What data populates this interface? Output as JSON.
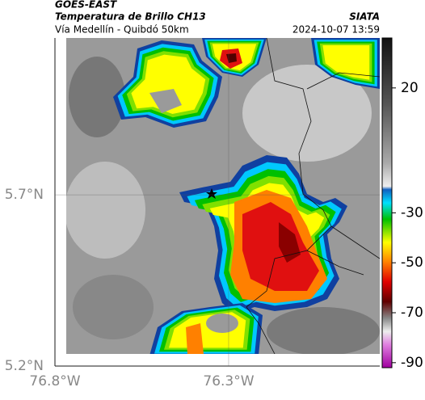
{
  "header": {
    "source": "GOES-EAST",
    "title": "Temperatura de Brillo CH13",
    "org": "SIATA",
    "subtitle": "Vía Medellín - Quibdó 50km",
    "datetime": "2024-10-07 13:59"
  },
  "map": {
    "lon_lim": [
      -76.8,
      -75.865
    ],
    "lat_lim": [
      5.2,
      6.158
    ],
    "xticks": [
      {
        "value": -76.8,
        "label": "76.8°W"
      },
      {
        "value": -76.3,
        "label": "76.3°W"
      }
    ],
    "yticks": [
      {
        "value": 5.7,
        "label": "5.7°N"
      },
      {
        "value": 5.2,
        "label": "5.2°N"
      }
    ]
  },
  "colorbar": {
    "lim": [
      -92,
      40
    ],
    "ticks": [
      20,
      -30,
      -50,
      -70,
      -90
    ]
  }
}
